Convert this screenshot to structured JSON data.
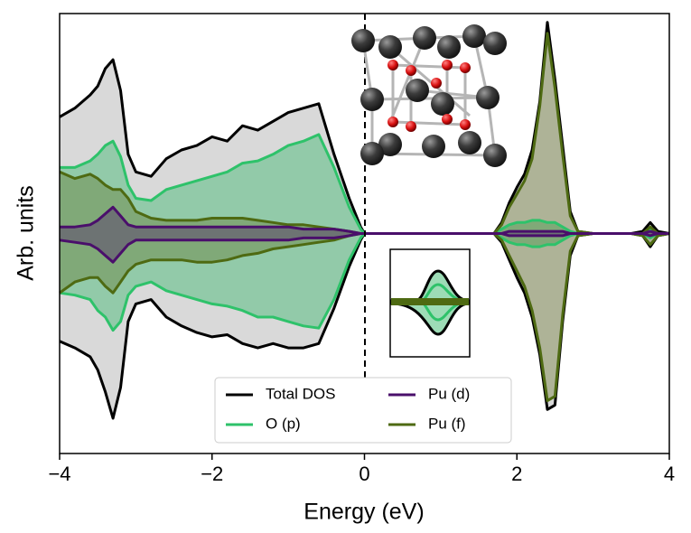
{
  "chart_data": {
    "type": "line",
    "x_label": "Energy (eV)",
    "y_label": "Arb. units",
    "xlim": [
      -4,
      4
    ],
    "xticks": [
      {
        "value": -4,
        "label": "−4"
      },
      {
        "value": -2,
        "label": "−2"
      },
      0,
      2,
      4
    ],
    "ylim": [
      -1,
      1
    ],
    "x": [
      -4,
      -3.8,
      -3.6,
      -3.5,
      -3.4,
      -3.3,
      -3.2,
      -3.1,
      -3.0,
      -2.8,
      -2.6,
      -2.4,
      -2.2,
      -2.0,
      -1.8,
      -1.6,
      -1.4,
      -1.2,
      -1.0,
      -0.8,
      -0.6,
      -0.4,
      -0.2,
      -0.05,
      0,
      0.5,
      1.0,
      1.5,
      1.7,
      1.8,
      1.9,
      2.0,
      2.1,
      2.2,
      2.3,
      2.4,
      2.5,
      2.6,
      2.7,
      2.8,
      3.0,
      3.5,
      3.65,
      3.75,
      3.85,
      4.0
    ],
    "series": [
      {
        "name": "Total DOS",
        "color": "#000000",
        "fill": "#d9d9d9",
        "values": [
          0.53,
          0.57,
          0.63,
          0.67,
          0.75,
          0.79,
          0.65,
          0.36,
          0.28,
          0.26,
          0.34,
          0.38,
          0.4,
          0.44,
          0.42,
          0.49,
          0.47,
          0.51,
          0.55,
          0.57,
          0.59,
          0.36,
          0.16,
          0.03,
          0,
          0,
          0,
          0,
          0,
          0.05,
          0.14,
          0.21,
          0.27,
          0.38,
          0.6,
          0.96,
          0.7,
          0.4,
          0.1,
          0.01,
          0,
          0,
          0.01,
          0.05,
          0.01,
          0
        ],
        "values_down": [
          -0.49,
          -0.52,
          -0.56,
          -0.62,
          -0.72,
          -0.84,
          -0.7,
          -0.4,
          -0.32,
          -0.3,
          -0.38,
          -0.42,
          -0.45,
          -0.47,
          -0.46,
          -0.5,
          -0.52,
          -0.5,
          -0.52,
          -0.52,
          -0.5,
          -0.34,
          -0.15,
          -0.03,
          0,
          0,
          0,
          0,
          0,
          -0.04,
          -0.12,
          -0.2,
          -0.27,
          -0.38,
          -0.55,
          -0.8,
          -0.78,
          -0.4,
          -0.1,
          -0.01,
          0,
          0,
          -0.01,
          -0.06,
          -0.01,
          0
        ]
      },
      {
        "name": "O (p)",
        "color": "#2ec26a",
        "fill": "rgba(60,185,110,0.45)",
        "values": [
          0.3,
          0.3,
          0.33,
          0.36,
          0.4,
          0.42,
          0.35,
          0.22,
          0.16,
          0.15,
          0.2,
          0.22,
          0.24,
          0.26,
          0.28,
          0.32,
          0.33,
          0.36,
          0.4,
          0.42,
          0.45,
          0.3,
          0.12,
          0.02,
          0,
          0,
          0,
          0,
          0,
          0.02,
          0.04,
          0.05,
          0.05,
          0.06,
          0.06,
          0.05,
          0.05,
          0.03,
          0.01,
          0,
          0,
          0,
          0,
          0.02,
          0,
          0
        ],
        "values_down": [
          -0.27,
          -0.28,
          -0.3,
          -0.35,
          -0.38,
          -0.44,
          -0.4,
          -0.28,
          -0.24,
          -0.22,
          -0.26,
          -0.28,
          -0.3,
          -0.32,
          -0.33,
          -0.35,
          -0.38,
          -0.38,
          -0.4,
          -0.42,
          -0.43,
          -0.3,
          -0.12,
          -0.02,
          0,
          0,
          0,
          0,
          0,
          -0.02,
          -0.04,
          -0.05,
          -0.05,
          -0.06,
          -0.06,
          -0.05,
          -0.05,
          -0.03,
          -0.01,
          0,
          0,
          0,
          0,
          -0.02,
          0,
          0
        ]
      },
      {
        "name": "Pu (d)",
        "color": "#4a0f6b",
        "fill": "rgba(74,15,107,0.35)",
        "values": [
          0.03,
          0.03,
          0.04,
          0.06,
          0.09,
          0.12,
          0.08,
          0.04,
          0.03,
          0.03,
          0.03,
          0.03,
          0.03,
          0.03,
          0.03,
          0.03,
          0.03,
          0.03,
          0.03,
          0.02,
          0.02,
          0.02,
          0.01,
          0,
          0,
          0,
          0,
          0,
          0,
          0,
          0.01,
          0.01,
          0.01,
          0.01,
          0.01,
          0.01,
          0.01,
          0.01,
          0,
          0,
          0,
          0,
          0,
          0.01,
          0,
          0
        ],
        "values_down": [
          -0.03,
          -0.04,
          -0.05,
          -0.07,
          -0.1,
          -0.13,
          -0.09,
          -0.05,
          -0.03,
          -0.03,
          -0.03,
          -0.03,
          -0.03,
          -0.03,
          -0.03,
          -0.03,
          -0.03,
          -0.03,
          -0.03,
          -0.02,
          -0.02,
          -0.02,
          -0.01,
          0,
          0,
          0,
          0,
          0,
          0,
          0,
          -0.01,
          -0.01,
          -0.01,
          -0.01,
          -0.01,
          -0.01,
          -0.01,
          -0.01,
          0,
          0,
          0,
          0,
          0,
          -0.01,
          0,
          0
        ]
      },
      {
        "name": "Pu (f)",
        "color": "#4e6a12",
        "fill": "rgba(95,110,30,0.35)",
        "values": [
          0.28,
          0.25,
          0.27,
          0.25,
          0.22,
          0.2,
          0.2,
          0.16,
          0.1,
          0.07,
          0.06,
          0.06,
          0.06,
          0.07,
          0.07,
          0.07,
          0.06,
          0.05,
          0.04,
          0.04,
          0.03,
          0.02,
          0.01,
          0,
          0,
          0,
          0,
          0,
          0,
          0.04,
          0.12,
          0.18,
          0.24,
          0.34,
          0.58,
          0.91,
          0.66,
          0.36,
          0.08,
          0.01,
          0,
          0,
          0,
          0.03,
          0,
          0
        ],
        "values_down": [
          -0.27,
          -0.22,
          -0.2,
          -0.2,
          -0.24,
          -0.27,
          -0.22,
          -0.17,
          -0.14,
          -0.12,
          -0.12,
          -0.12,
          -0.13,
          -0.13,
          -0.12,
          -0.1,
          -0.09,
          -0.07,
          -0.06,
          -0.05,
          -0.04,
          -0.03,
          -0.01,
          0,
          0,
          0,
          0,
          0,
          0,
          -0.03,
          -0.1,
          -0.17,
          -0.24,
          -0.35,
          -0.52,
          -0.76,
          -0.74,
          -0.37,
          -0.08,
          -0.01,
          0,
          0,
          -0.01,
          -0.05,
          -0.01,
          0
        ]
      }
    ],
    "legend": "lower center"
  }
}
